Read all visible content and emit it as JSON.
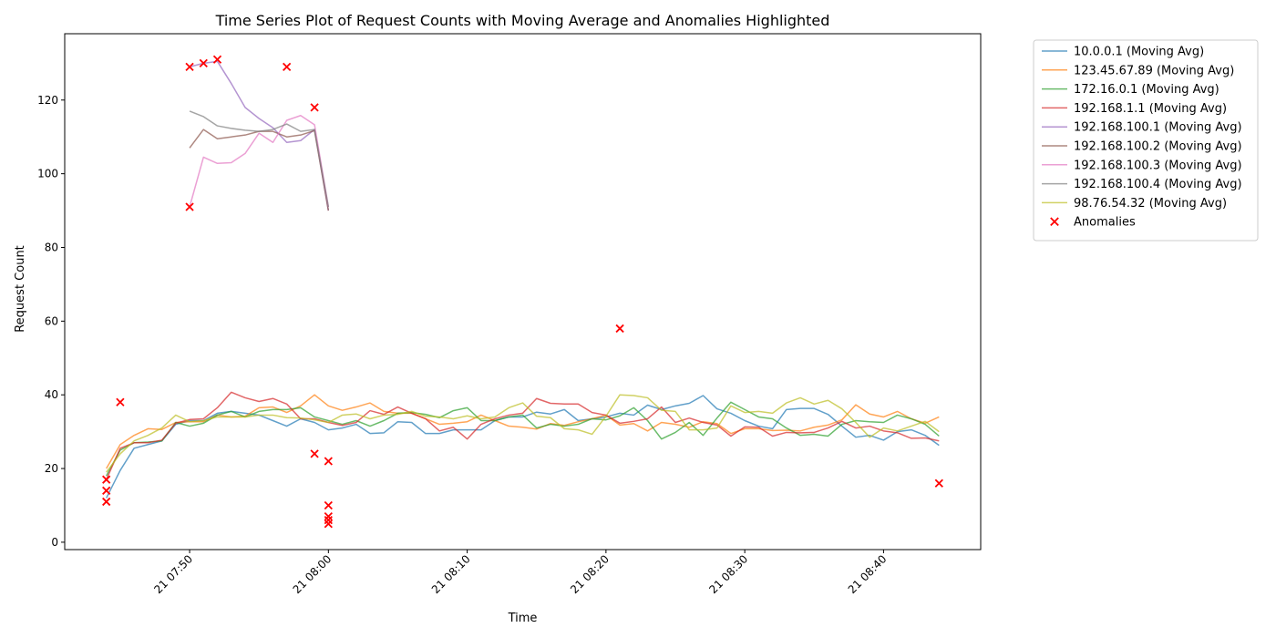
{
  "chart_data": {
    "type": "line",
    "title": "Time Series Plot of Request Counts with Moving Average and Anomalies Highlighted",
    "xlabel": "Time",
    "ylabel": "Request Count",
    "x_axis_kind": "time",
    "xlim": [
      "2024-01-21 07:41:00",
      "2024-01-21 08:47:00"
    ],
    "ylim": [
      -2,
      138
    ],
    "yticks": [
      0,
      20,
      40,
      60,
      80,
      100,
      120
    ],
    "xticks": [
      {
        "t": "2024-01-21 07:50",
        "label": "21 07:50"
      },
      {
        "t": "2024-01-21 08:00",
        "label": "21 08:00"
      },
      {
        "t": "2024-01-21 08:10",
        "label": "21 08:10"
      },
      {
        "t": "2024-01-21 08:20",
        "label": "21 08:20"
      },
      {
        "t": "2024-01-21 08:30",
        "label": "21 08:30"
      },
      {
        "t": "2024-01-21 08:40",
        "label": "21 08:40"
      }
    ],
    "legend_position": "outside-right",
    "series": [
      {
        "name": "10.0.0.1 (Moving Avg)",
        "color": "#1f77b4",
        "x": [
          "2024-01-21 07:44",
          "2024-01-21 07:45",
          "2024-01-21 07:46",
          "2024-01-21 07:47",
          "2024-01-21 07:48",
          "2024-01-21 07:49",
          "2024-01-21 07:50",
          "2024-01-21 07:51",
          "2024-01-21 07:52",
          "2024-01-21 07:53",
          "2024-01-21 07:54",
          "2024-01-21 07:55",
          "2024-01-21 07:56",
          "2024-01-21 07:57",
          "2024-01-21 07:58",
          "2024-01-21 07:59",
          "2024-01-21 08:00",
          "2024-01-21 08:01",
          "2024-01-21 08:02",
          "2024-01-21 08:03",
          "2024-01-21 08:04",
          "2024-01-21 08:05",
          "2024-01-21 08:06",
          "2024-01-21 08:07",
          "2024-01-21 08:08",
          "2024-01-21 08:09",
          "2024-01-21 08:10",
          "2024-01-21 08:11",
          "2024-01-21 08:12",
          "2024-01-21 08:13",
          "2024-01-21 08:14",
          "2024-01-21 08:15",
          "2024-01-21 08:16",
          "2024-01-21 08:17",
          "2024-01-21 08:18",
          "2024-01-21 08:19",
          "2024-01-21 08:20",
          "2024-01-21 08:21",
          "2024-01-21 08:22",
          "2024-01-21 08:23",
          "2024-01-21 08:24",
          "2024-01-21 08:25",
          "2024-01-21 08:26",
          "2024-01-21 08:27",
          "2024-01-21 08:28",
          "2024-01-21 08:29",
          "2024-01-21 08:30",
          "2024-01-21 08:31",
          "2024-01-21 08:32",
          "2024-01-21 08:33",
          "2024-01-21 08:34",
          "2024-01-21 08:35",
          "2024-01-21 08:36",
          "2024-01-21 08:37",
          "2024-01-21 08:38",
          "2024-01-21 08:39",
          "2024-01-21 08:40",
          "2024-01-21 08:41",
          "2024-01-21 08:42",
          "2024-01-21 08:43",
          "2024-01-21 08:44"
        ],
        "y": [
          12,
          19.5,
          25.5,
          26.5,
          27.5,
          32,
          33,
          33,
          35,
          35.5,
          35,
          34.5,
          33,
          31.5,
          33.5,
          32.5,
          30.5,
          31,
          32,
          29.5,
          29.7,
          32.7,
          32.5,
          29.5,
          29.5,
          30.5,
          30.5,
          30.5,
          33,
          34,
          34,
          35.3,
          34.8,
          36,
          33,
          33.5,
          34,
          35,
          34.5,
          37.2,
          36,
          37,
          37.7,
          39.8,
          36.2,
          35,
          33,
          31.5,
          30.8,
          36,
          36.3,
          36.3,
          34.7,
          31.5,
          28.5,
          29,
          27.7,
          30,
          30.5,
          29,
          26.3
        ]
      },
      {
        "name": "123.45.67.89 (Moving Avg)",
        "color": "#ff7f0e",
        "x": [
          "2024-01-21 07:44",
          "2024-01-21 07:45",
          "2024-01-21 07:46",
          "2024-01-21 07:47",
          "2024-01-21 07:48",
          "2024-01-21 07:49",
          "2024-01-21 07:50",
          "2024-01-21 07:51",
          "2024-01-21 07:52",
          "2024-01-21 07:53",
          "2024-01-21 07:54",
          "2024-01-21 07:55",
          "2024-01-21 07:56",
          "2024-01-21 07:57",
          "2024-01-21 07:58",
          "2024-01-21 07:59",
          "2024-01-21 08:00",
          "2024-01-21 08:01",
          "2024-01-21 08:02",
          "2024-01-21 08:03",
          "2024-01-21 08:04",
          "2024-01-21 08:05",
          "2024-01-21 08:06",
          "2024-01-21 08:07",
          "2024-01-21 08:08",
          "2024-01-21 08:09",
          "2024-01-21 08:10",
          "2024-01-21 08:11",
          "2024-01-21 08:12",
          "2024-01-21 08:13",
          "2024-01-21 08:14",
          "2024-01-21 08:15",
          "2024-01-21 08:16",
          "2024-01-21 08:17",
          "2024-01-21 08:18",
          "2024-01-21 08:19",
          "2024-01-21 08:20",
          "2024-01-21 08:21",
          "2024-01-21 08:22",
          "2024-01-21 08:23",
          "2024-01-21 08:24",
          "2024-01-21 08:25",
          "2024-01-21 08:26",
          "2024-01-21 08:27",
          "2024-01-21 08:28",
          "2024-01-21 08:29",
          "2024-01-21 08:30",
          "2024-01-21 08:31",
          "2024-01-21 08:32",
          "2024-01-21 08:33",
          "2024-01-21 08:34",
          "2024-01-21 08:35",
          "2024-01-21 08:36",
          "2024-01-21 08:37",
          "2024-01-21 08:38",
          "2024-01-21 08:39",
          "2024-01-21 08:40",
          "2024-01-21 08:41",
          "2024-01-21 08:42",
          "2024-01-21 08:43",
          "2024-01-21 08:44"
        ],
        "y": [
          20,
          26.5,
          29,
          30.8,
          30.6,
          32.5,
          32.7,
          32.7,
          34.5,
          34,
          34.2,
          36.5,
          36.7,
          35.2,
          37,
          40,
          37,
          35.8,
          36.7,
          37.8,
          35.5,
          35,
          35,
          33.5,
          32,
          32.3,
          32.7,
          34.5,
          33,
          31.5,
          31.2,
          30.7,
          32.2,
          31.7,
          32.7,
          33.5,
          34.5,
          31.8,
          32.2,
          30.2,
          32.5,
          32,
          31.2,
          32.7,
          32.2,
          29.5,
          30.8,
          30.8,
          30.3,
          30.4,
          30.2,
          31.2,
          31.8,
          33.2,
          37.3,
          34.8,
          34,
          35.5,
          33.5,
          32.3,
          34
        ]
      },
      {
        "name": "172.16.0.1 (Moving Avg)",
        "color": "#2ca02c",
        "x": [
          "2024-01-21 07:44",
          "2024-01-21 07:45",
          "2024-01-21 07:46",
          "2024-01-21 07:47",
          "2024-01-21 07:48",
          "2024-01-21 07:49",
          "2024-01-21 07:50",
          "2024-01-21 07:51",
          "2024-01-21 07:52",
          "2024-01-21 07:53",
          "2024-01-21 07:54",
          "2024-01-21 07:55",
          "2024-01-21 07:56",
          "2024-01-21 07:57",
          "2024-01-21 07:58",
          "2024-01-21 07:59",
          "2024-01-21 08:00",
          "2024-01-21 08:01",
          "2024-01-21 08:02",
          "2024-01-21 08:03",
          "2024-01-21 08:04",
          "2024-01-21 08:05",
          "2024-01-21 08:06",
          "2024-01-21 08:07",
          "2024-01-21 08:08",
          "2024-01-21 08:09",
          "2024-01-21 08:10",
          "2024-01-21 08:11",
          "2024-01-21 08:12",
          "2024-01-21 08:13",
          "2024-01-21 08:14",
          "2024-01-21 08:15",
          "2024-01-21 08:16",
          "2024-01-21 08:17",
          "2024-01-21 08:18",
          "2024-01-21 08:19",
          "2024-01-21 08:20",
          "2024-01-21 08:21",
          "2024-01-21 08:22",
          "2024-01-21 08:23",
          "2024-01-21 08:24",
          "2024-01-21 08:25",
          "2024-01-21 08:26",
          "2024-01-21 08:27",
          "2024-01-21 08:28",
          "2024-01-21 08:29",
          "2024-01-21 08:30",
          "2024-01-21 08:31",
          "2024-01-21 08:32",
          "2024-01-21 08:33",
          "2024-01-21 08:34",
          "2024-01-21 08:35",
          "2024-01-21 08:36",
          "2024-01-21 08:37",
          "2024-01-21 08:38",
          "2024-01-21 08:39",
          "2024-01-21 08:40",
          "2024-01-21 08:41",
          "2024-01-21 08:42",
          "2024-01-21 08:43",
          "2024-01-21 08:44"
        ],
        "y": [
          18,
          25,
          27,
          27.2,
          27.5,
          32.5,
          31.5,
          32.3,
          34.5,
          35.5,
          34,
          35.5,
          36,
          36,
          36.5,
          34,
          33,
          32,
          33,
          31.5,
          33,
          35,
          35.2,
          34.7,
          33.8,
          35.7,
          36.5,
          33,
          33,
          34,
          34.5,
          31,
          32,
          31.5,
          32,
          33.5,
          33.2,
          34.3,
          36.5,
          33,
          28,
          29.8,
          32.5,
          29,
          33.7,
          38,
          36,
          34,
          33.5,
          31,
          29,
          29.3,
          28.8,
          32,
          33,
          32.7,
          32.5,
          34.5,
          33.5,
          32,
          28.8
        ]
      },
      {
        "name": "192.168.1.1 (Moving Avg)",
        "color": "#d62728",
        "x": [
          "2024-01-21 07:44",
          "2024-01-21 07:45",
          "2024-01-21 07:46",
          "2024-01-21 07:47",
          "2024-01-21 07:48",
          "2024-01-21 07:49",
          "2024-01-21 07:50",
          "2024-01-21 07:51",
          "2024-01-21 07:52",
          "2024-01-21 07:53",
          "2024-01-21 07:54",
          "2024-01-21 07:55",
          "2024-01-21 07:56",
          "2024-01-21 07:57",
          "2024-01-21 07:58",
          "2024-01-21 07:59",
          "2024-01-21 08:00",
          "2024-01-21 08:01",
          "2024-01-21 08:02",
          "2024-01-21 08:03",
          "2024-01-21 08:04",
          "2024-01-21 08:05",
          "2024-01-21 08:06",
          "2024-01-21 08:07",
          "2024-01-21 08:08",
          "2024-01-21 08:09",
          "2024-01-21 08:10",
          "2024-01-21 08:11",
          "2024-01-21 08:12",
          "2024-01-21 08:13",
          "2024-01-21 08:14",
          "2024-01-21 08:15",
          "2024-01-21 08:16",
          "2024-01-21 08:17",
          "2024-01-21 08:18",
          "2024-01-21 08:19",
          "2024-01-21 08:20",
          "2024-01-21 08:21",
          "2024-01-21 08:22",
          "2024-01-21 08:23",
          "2024-01-21 08:24",
          "2024-01-21 08:25",
          "2024-01-21 08:26",
          "2024-01-21 08:27",
          "2024-01-21 08:28",
          "2024-01-21 08:29",
          "2024-01-21 08:30",
          "2024-01-21 08:31",
          "2024-01-21 08:32",
          "2024-01-21 08:33",
          "2024-01-21 08:34",
          "2024-01-21 08:35",
          "2024-01-21 08:36",
          "2024-01-21 08:37",
          "2024-01-21 08:38",
          "2024-01-21 08:39",
          "2024-01-21 08:40",
          "2024-01-21 08:41",
          "2024-01-21 08:42",
          "2024-01-21 08:43",
          "2024-01-21 08:44"
        ],
        "y": [
          17,
          25.5,
          27,
          27,
          27.7,
          32.3,
          33.3,
          33.5,
          36.5,
          40.7,
          39.2,
          38.2,
          39,
          37.5,
          33.5,
          33.5,
          32.5,
          31.7,
          32.5,
          35.7,
          34.7,
          36.7,
          35,
          33.5,
          30.2,
          31.2,
          28,
          32,
          33.5,
          34.5,
          35,
          39,
          37.7,
          37.5,
          37.5,
          35.2,
          34.5,
          32.3,
          32.8,
          33.5,
          36.7,
          32.5,
          33.7,
          32.5,
          31.8,
          28.8,
          31.3,
          31.2,
          28.8,
          29.8,
          29.7,
          29.8,
          31,
          32.8,
          31,
          31.5,
          30.2,
          29.7,
          28.2,
          28.3,
          27.5
        ]
      },
      {
        "name": "192.168.100.1 (Moving Avg)",
        "color": "#9467bd",
        "x": [
          "2024-01-21 07:50",
          "2024-01-21 07:51",
          "2024-01-21 07:52",
          "2024-01-21 07:53",
          "2024-01-21 07:54",
          "2024-01-21 07:55",
          "2024-01-21 07:56",
          "2024-01-21 07:57",
          "2024-01-21 07:58",
          "2024-01-21 07:59",
          "2024-01-21 08:00"
        ],
        "y": [
          129,
          130,
          130.5,
          124.5,
          118,
          115,
          112.5,
          108.5,
          109,
          112,
          90
        ]
      },
      {
        "name": "192.168.100.2 (Moving Avg)",
        "color": "#8c564b",
        "x": [
          "2024-01-21 07:50",
          "2024-01-21 07:51",
          "2024-01-21 07:52",
          "2024-01-21 07:53",
          "2024-01-21 07:54",
          "2024-01-21 07:55",
          "2024-01-21 07:56",
          "2024-01-21 07:57",
          "2024-01-21 07:58",
          "2024-01-21 07:59",
          "2024-01-21 08:00"
        ],
        "y": [
          107,
          112,
          109.5,
          110,
          110.5,
          111.5,
          111.5,
          110,
          110.5,
          111.7,
          90
        ]
      },
      {
        "name": "192.168.100.3 (Moving Avg)",
        "color": "#e377c2",
        "x": [
          "2024-01-21 07:50",
          "2024-01-21 07:51",
          "2024-01-21 07:52",
          "2024-01-21 07:53",
          "2024-01-21 07:54",
          "2024-01-21 07:55",
          "2024-01-21 07:56",
          "2024-01-21 07:57",
          "2024-01-21 07:58",
          "2024-01-21 07:59",
          "2024-01-21 08:00"
        ],
        "y": [
          91,
          104.5,
          102.8,
          103,
          105.5,
          111,
          108.5,
          114.5,
          115.8,
          113.3,
          91
        ]
      },
      {
        "name": "192.168.100.4 (Moving Avg)",
        "color": "#7f7f7f",
        "x": [
          "2024-01-21 07:50",
          "2024-01-21 07:51",
          "2024-01-21 07:52",
          "2024-01-21 07:53",
          "2024-01-21 07:54",
          "2024-01-21 07:55",
          "2024-01-21 07:56",
          "2024-01-21 07:57",
          "2024-01-21 07:58",
          "2024-01-21 07:59",
          "2024-01-21 08:00"
        ],
        "y": [
          117,
          115.5,
          113,
          112.3,
          111.8,
          111.5,
          112,
          113.5,
          111.5,
          112,
          91
        ]
      },
      {
        "name": "98.76.54.32 (Moving Avg)",
        "color": "#bcbd22",
        "x": [
          "2024-01-21 07:44",
          "2024-01-21 07:45",
          "2024-01-21 07:46",
          "2024-01-21 07:47",
          "2024-01-21 07:48",
          "2024-01-21 07:49",
          "2024-01-21 07:50",
          "2024-01-21 07:51",
          "2024-01-21 07:52",
          "2024-01-21 07:53",
          "2024-01-21 07:54",
          "2024-01-21 07:55",
          "2024-01-21 07:56",
          "2024-01-21 07:57",
          "2024-01-21 07:58",
          "2024-01-21 07:59",
          "2024-01-21 08:00",
          "2024-01-21 08:01",
          "2024-01-21 08:02",
          "2024-01-21 08:03",
          "2024-01-21 08:04",
          "2024-01-21 08:05",
          "2024-01-21 08:06",
          "2024-01-21 08:07",
          "2024-01-21 08:08",
          "2024-01-21 08:09",
          "2024-01-21 08:10",
          "2024-01-21 08:11",
          "2024-01-21 08:12",
          "2024-01-21 08:13",
          "2024-01-21 08:14",
          "2024-01-21 08:15",
          "2024-01-21 08:16",
          "2024-01-21 08:17",
          "2024-01-21 08:18",
          "2024-01-21 08:19",
          "2024-01-21 08:20",
          "2024-01-21 08:21",
          "2024-01-21 08:22",
          "2024-01-21 08:23",
          "2024-01-21 08:24",
          "2024-01-21 08:25",
          "2024-01-21 08:26",
          "2024-01-21 08:27",
          "2024-01-21 08:28",
          "2024-01-21 08:29",
          "2024-01-21 08:30",
          "2024-01-21 08:31",
          "2024-01-21 08:32",
          "2024-01-21 08:33",
          "2024-01-21 08:34",
          "2024-01-21 08:35",
          "2024-01-21 08:36",
          "2024-01-21 08:37",
          "2024-01-21 08:38",
          "2024-01-21 08:39",
          "2024-01-21 08:40",
          "2024-01-21 08:41",
          "2024-01-21 08:42",
          "2024-01-21 08:43",
          "2024-01-21 08:44"
        ],
        "y": [
          19,
          24,
          27.5,
          29,
          31,
          34.5,
          32.7,
          33,
          34,
          34,
          34,
          34.5,
          34.5,
          33.8,
          33.7,
          33.2,
          32.5,
          34.5,
          34.8,
          33.5,
          34.5,
          34.7,
          35.5,
          34.2,
          34,
          33.5,
          34.3,
          33.5,
          34,
          36.5,
          37.8,
          34.2,
          33.8,
          30.8,
          30.5,
          29.3,
          34.2,
          40,
          39.8,
          39.2,
          35.8,
          35.5,
          30.5,
          30.5,
          31,
          37,
          35.2,
          35.5,
          35,
          37.8,
          39.2,
          37.5,
          38.5,
          36.2,
          32.5,
          28.5,
          31,
          30.2,
          31.5,
          32.8,
          30
        ]
      }
    ],
    "anomalies": {
      "name": "Anomalies",
      "color": "#ff0000",
      "points": [
        {
          "x": "2024-01-21 07:44",
          "y": 11
        },
        {
          "x": "2024-01-21 07:44",
          "y": 14
        },
        {
          "x": "2024-01-21 07:44",
          "y": 17
        },
        {
          "x": "2024-01-21 07:45",
          "y": 38
        },
        {
          "x": "2024-01-21 07:50",
          "y": 91
        },
        {
          "x": "2024-01-21 07:50",
          "y": 129
        },
        {
          "x": "2024-01-21 07:51",
          "y": 130
        },
        {
          "x": "2024-01-21 07:52",
          "y": 131
        },
        {
          "x": "2024-01-21 07:57",
          "y": 129
        },
        {
          "x": "2024-01-21 07:59",
          "y": 118
        },
        {
          "x": "2024-01-21 07:59",
          "y": 24
        },
        {
          "x": "2024-01-21 08:00",
          "y": 22
        },
        {
          "x": "2024-01-21 08:00",
          "y": 10
        },
        {
          "x": "2024-01-21 08:00",
          "y": 7
        },
        {
          "x": "2024-01-21 08:00",
          "y": 6
        },
        {
          "x": "2024-01-21 08:00",
          "y": 5
        },
        {
          "x": "2024-01-21 08:21",
          "y": 58
        },
        {
          "x": "2024-01-21 08:44",
          "y": 16
        }
      ]
    }
  }
}
